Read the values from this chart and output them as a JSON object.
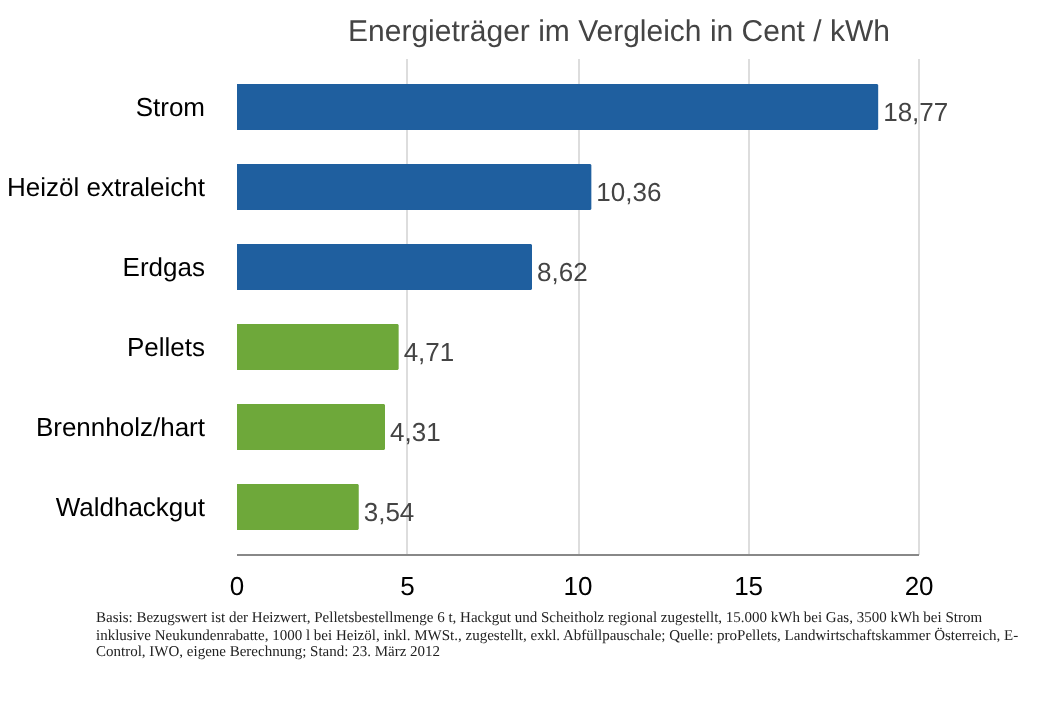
{
  "chart_data": {
    "type": "bar",
    "orientation": "horizontal",
    "title": "Energieträger im Vergleich in Cent / kWh",
    "categories": [
      "Strom",
      "Heizöl extraleicht",
      "Erdgas",
      "Pellets",
      "Brennholz/hart",
      "Waldhackgut"
    ],
    "values": [
      18.77,
      10.36,
      8.62,
      4.71,
      4.31,
      3.54
    ],
    "colors": [
      "#1f5f9f",
      "#1f5f9f",
      "#1f5f9f",
      "#6ea83a",
      "#6ea83a",
      "#6ea83a"
    ],
    "value_labels": [
      "18,77",
      "10,36",
      "8,62",
      "4,71",
      "4,31",
      "3,54"
    ],
    "xlim": [
      0,
      20
    ],
    "xticks": [
      0,
      5,
      10,
      15,
      20
    ],
    "grid": "x",
    "annotations": [
      "Basis: Bezugswert ist der Heizwert, Pelletsbestellmenge 6 t, Hackgut und Scheitholz regional zugestellt, 15.000 kWh bei Gas, 3500 kWh bei Strom inklusive Neukundenrabatte, 1000 l bei Heizöl, inkl. MWSt., zugestellt, exkl. Abfüllpauschale; Quelle: proPellets, Landwirtschaftskammer Österreich, E-Control, IWO, eigene Berechnung; Stand: 23. März 2012"
    ]
  }
}
